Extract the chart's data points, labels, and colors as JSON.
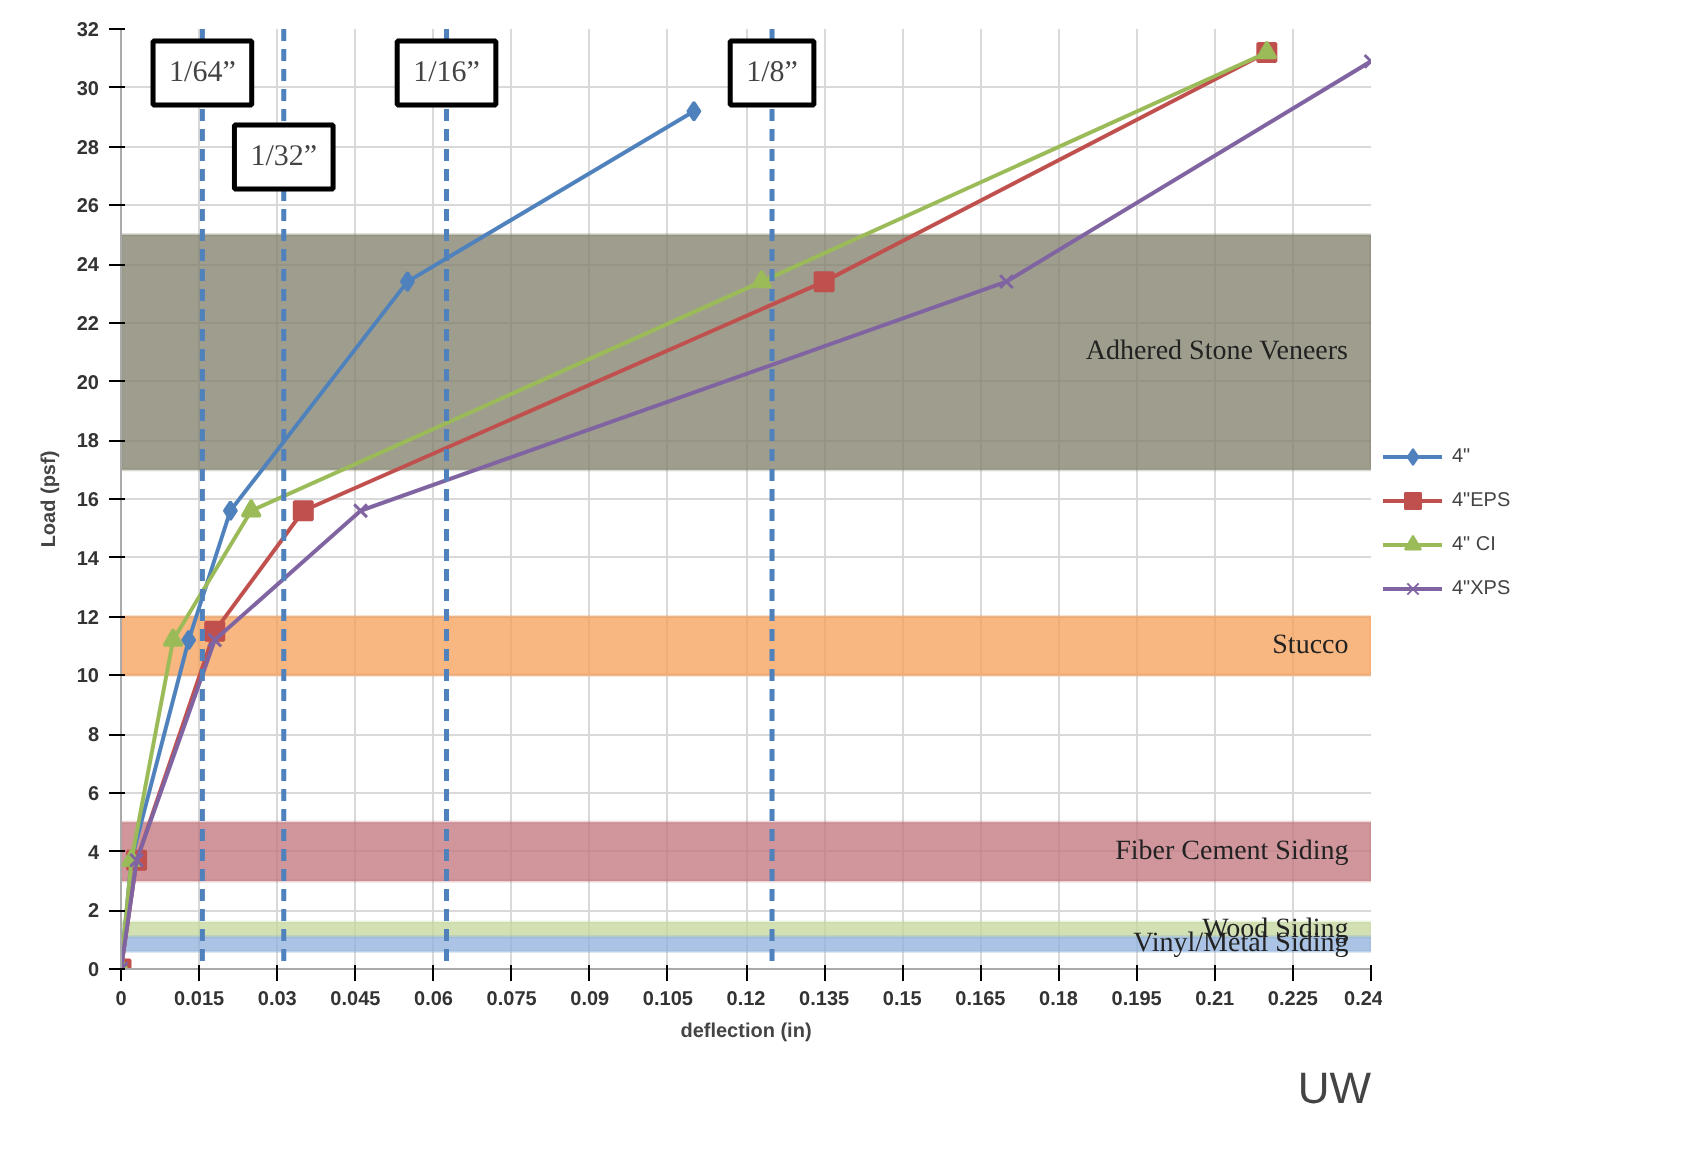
{
  "chart_data": {
    "type": "line",
    "xlabel": "deflection (in)",
    "ylabel": "Load (psf)",
    "xlim": [
      0,
      0.24
    ],
    "ylim": [
      0,
      32
    ],
    "xticks": [
      0,
      0.015,
      0.03,
      0.045,
      0.06,
      0.075,
      0.09,
      0.105,
      0.12,
      0.135,
      0.15,
      0.165,
      0.18,
      0.195,
      0.21,
      0.225,
      0.24
    ],
    "yticks": [
      0,
      2,
      4,
      6,
      8,
      10,
      12,
      14,
      16,
      18,
      20,
      22,
      24,
      26,
      28,
      30,
      32
    ],
    "grid": true,
    "legend": "right",
    "series": [
      {
        "name": "4\"",
        "color": "#4f81bd",
        "marker": "diamond",
        "x": [
          0,
          0.002,
          0.013,
          0.021,
          0.055,
          0.11
        ],
        "values": [
          0,
          3.7,
          11.2,
          15.6,
          23.4,
          29.2
        ]
      },
      {
        "name": "4\"EPS",
        "color": "#c0504d",
        "marker": "square",
        "x": [
          0,
          0.003,
          0.018,
          0.035,
          0.135,
          0.22
        ],
        "values": [
          0,
          3.7,
          11.5,
          15.6,
          23.4,
          31.2
        ]
      },
      {
        "name": "4\" CI",
        "color": "#9bbb59",
        "marker": "triangle",
        "x": [
          0,
          0.002,
          0.01,
          0.025,
          0.123,
          0.22
        ],
        "values": [
          0,
          3.7,
          11.2,
          15.6,
          23.4,
          31.2
        ]
      },
      {
        "name": "4\"XPS",
        "color": "#8064a2",
        "marker": "cross",
        "x": [
          0,
          0.003,
          0.018,
          0.046,
          0.17,
          0.24
        ],
        "values": [
          0,
          3.7,
          11.2,
          15.6,
          23.4,
          30.9
        ]
      }
    ],
    "ref_lines": [
      {
        "axis": "x",
        "value": 0.015625,
        "label": "1/64”",
        "color": "#4f81bd",
        "line_style": "dashed"
      },
      {
        "axis": "x",
        "value": 0.03125,
        "label": "1/32”",
        "color": "#4f81bd",
        "line_style": "dashed"
      },
      {
        "axis": "x",
        "value": 0.0625,
        "label": "1/16”",
        "color": "#4f81bd",
        "line_style": "dashed"
      },
      {
        "axis": "x",
        "value": 0.125,
        "label": "1/8”",
        "color": "#4f81bd",
        "line_style": "dashed"
      }
    ],
    "bands": [
      {
        "axis": "y",
        "from": 17,
        "to": 25,
        "label": "Adhered Stone Veneers",
        "color": "#7f7d68"
      },
      {
        "axis": "y",
        "from": 10,
        "to": 12,
        "label": "Stucco",
        "color": "#f59d56"
      },
      {
        "axis": "y",
        "from": 3,
        "to": 5,
        "label": "Fiber Cement Siding",
        "color": "#c0737a"
      },
      {
        "axis": "y",
        "from": 1.1,
        "to": 1.6,
        "label": "Wood Siding",
        "color": "#c3d69b"
      },
      {
        "axis": "y",
        "from": 0.6,
        "to": 1.1,
        "label": "Vinyl/Metal Siding",
        "color": "#8fb0dc"
      }
    ],
    "annotations": [
      "UW"
    ]
  }
}
